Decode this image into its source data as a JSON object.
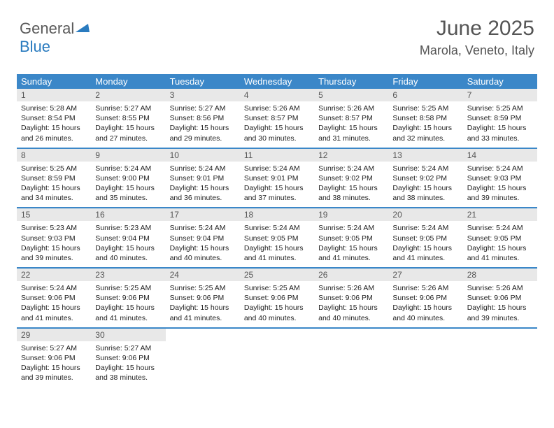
{
  "logo": {
    "text1": "General",
    "text2": "Blue"
  },
  "header": {
    "title": "June 2025",
    "location": "Marola, Veneto, Italy"
  },
  "colors": {
    "accent": "#3b87c8",
    "header_bg": "#3b87c8",
    "daynum_bg": "#e8e8e8",
    "text": "#222222",
    "muted": "#555555"
  },
  "calendar": {
    "days_of_week": [
      "Sunday",
      "Monday",
      "Tuesday",
      "Wednesday",
      "Thursday",
      "Friday",
      "Saturday"
    ],
    "weeks": [
      [
        {
          "n": "1",
          "sunrise": "5:28 AM",
          "sunset": "8:54 PM",
          "daylight": "15 hours and 26 minutes."
        },
        {
          "n": "2",
          "sunrise": "5:27 AM",
          "sunset": "8:55 PM",
          "daylight": "15 hours and 27 minutes."
        },
        {
          "n": "3",
          "sunrise": "5:27 AM",
          "sunset": "8:56 PM",
          "daylight": "15 hours and 29 minutes."
        },
        {
          "n": "4",
          "sunrise": "5:26 AM",
          "sunset": "8:57 PM",
          "daylight": "15 hours and 30 minutes."
        },
        {
          "n": "5",
          "sunrise": "5:26 AM",
          "sunset": "8:57 PM",
          "daylight": "15 hours and 31 minutes."
        },
        {
          "n": "6",
          "sunrise": "5:25 AM",
          "sunset": "8:58 PM",
          "daylight": "15 hours and 32 minutes."
        },
        {
          "n": "7",
          "sunrise": "5:25 AM",
          "sunset": "8:59 PM",
          "daylight": "15 hours and 33 minutes."
        }
      ],
      [
        {
          "n": "8",
          "sunrise": "5:25 AM",
          "sunset": "8:59 PM",
          "daylight": "15 hours and 34 minutes."
        },
        {
          "n": "9",
          "sunrise": "5:24 AM",
          "sunset": "9:00 PM",
          "daylight": "15 hours and 35 minutes."
        },
        {
          "n": "10",
          "sunrise": "5:24 AM",
          "sunset": "9:01 PM",
          "daylight": "15 hours and 36 minutes."
        },
        {
          "n": "11",
          "sunrise": "5:24 AM",
          "sunset": "9:01 PM",
          "daylight": "15 hours and 37 minutes."
        },
        {
          "n": "12",
          "sunrise": "5:24 AM",
          "sunset": "9:02 PM",
          "daylight": "15 hours and 38 minutes."
        },
        {
          "n": "13",
          "sunrise": "5:24 AM",
          "sunset": "9:02 PM",
          "daylight": "15 hours and 38 minutes."
        },
        {
          "n": "14",
          "sunrise": "5:24 AM",
          "sunset": "9:03 PM",
          "daylight": "15 hours and 39 minutes."
        }
      ],
      [
        {
          "n": "15",
          "sunrise": "5:23 AM",
          "sunset": "9:03 PM",
          "daylight": "15 hours and 39 minutes."
        },
        {
          "n": "16",
          "sunrise": "5:23 AM",
          "sunset": "9:04 PM",
          "daylight": "15 hours and 40 minutes."
        },
        {
          "n": "17",
          "sunrise": "5:24 AM",
          "sunset": "9:04 PM",
          "daylight": "15 hours and 40 minutes."
        },
        {
          "n": "18",
          "sunrise": "5:24 AM",
          "sunset": "9:05 PM",
          "daylight": "15 hours and 41 minutes."
        },
        {
          "n": "19",
          "sunrise": "5:24 AM",
          "sunset": "9:05 PM",
          "daylight": "15 hours and 41 minutes."
        },
        {
          "n": "20",
          "sunrise": "5:24 AM",
          "sunset": "9:05 PM",
          "daylight": "15 hours and 41 minutes."
        },
        {
          "n": "21",
          "sunrise": "5:24 AM",
          "sunset": "9:05 PM",
          "daylight": "15 hours and 41 minutes."
        }
      ],
      [
        {
          "n": "22",
          "sunrise": "5:24 AM",
          "sunset": "9:06 PM",
          "daylight": "15 hours and 41 minutes."
        },
        {
          "n": "23",
          "sunrise": "5:25 AM",
          "sunset": "9:06 PM",
          "daylight": "15 hours and 41 minutes."
        },
        {
          "n": "24",
          "sunrise": "5:25 AM",
          "sunset": "9:06 PM",
          "daylight": "15 hours and 41 minutes."
        },
        {
          "n": "25",
          "sunrise": "5:25 AM",
          "sunset": "9:06 PM",
          "daylight": "15 hours and 40 minutes."
        },
        {
          "n": "26",
          "sunrise": "5:26 AM",
          "sunset": "9:06 PM",
          "daylight": "15 hours and 40 minutes."
        },
        {
          "n": "27",
          "sunrise": "5:26 AM",
          "sunset": "9:06 PM",
          "daylight": "15 hours and 40 minutes."
        },
        {
          "n": "28",
          "sunrise": "5:26 AM",
          "sunset": "9:06 PM",
          "daylight": "15 hours and 39 minutes."
        }
      ],
      [
        {
          "n": "29",
          "sunrise": "5:27 AM",
          "sunset": "9:06 PM",
          "daylight": "15 hours and 39 minutes."
        },
        {
          "n": "30",
          "sunrise": "5:27 AM",
          "sunset": "9:06 PM",
          "daylight": "15 hours and 38 minutes."
        },
        {
          "empty": true
        },
        {
          "empty": true
        },
        {
          "empty": true
        },
        {
          "empty": true
        },
        {
          "empty": true
        }
      ]
    ],
    "labels": {
      "sunrise": "Sunrise:",
      "sunset": "Sunset:",
      "daylight": "Daylight:"
    }
  }
}
